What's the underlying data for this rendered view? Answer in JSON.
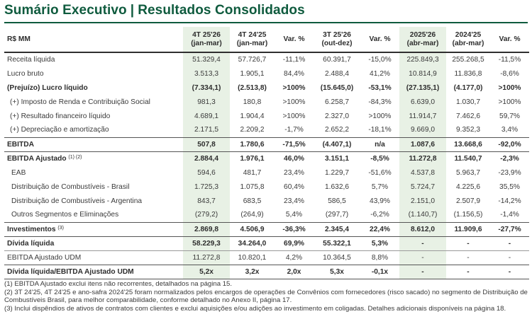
{
  "title": {
    "left": "Sumário Executivo",
    "sep": "|",
    "right": "Resultados Consolidados"
  },
  "table": {
    "unit_label": "R$ MM",
    "columns": [
      {
        "line1": "4T 25'26",
        "line2": "(jan-mar)"
      },
      {
        "line1": "4T 24'25",
        "line2": "(jan-mar)"
      },
      {
        "line1": "Var. %",
        "line2": ""
      },
      {
        "line1": "3T 25'26",
        "line2": "(out-dez)"
      },
      {
        "line1": "Var. %",
        "line2": ""
      },
      {
        "line1": "2025'26",
        "line2": "(abr-mar)"
      },
      {
        "line1": "2024'25",
        "line2": "(abr-mar)"
      },
      {
        "line1": "Var. %",
        "line2": ""
      }
    ],
    "rows": [
      {
        "label": "Receita líquida",
        "values": [
          "51.329,4",
          "57.726,7",
          "-11,1%",
          "60.391,7",
          "-15,0%",
          "225.849,3",
          "255.268,5",
          "-11,5%"
        ]
      },
      {
        "label": "Lucro bruto",
        "values": [
          "3.513,3",
          "1.905,1",
          "84,4%",
          "2.488,4",
          "41,2%",
          "10.814,9",
          "11.836,8",
          "-8,6%"
        ]
      },
      {
        "label": "(Prejuízo) Lucro líquido",
        "values": [
          "(7.334,1)",
          "(2.513,8)",
          ">100%",
          "(15.645,0)",
          "-53,1%",
          "(27.135,1)",
          "(4.177,0)",
          ">100%"
        ]
      },
      {
        "label": "(+) Imposto de Renda e Contribuição Social",
        "values": [
          "981,3",
          "180,8",
          ">100%",
          "6.258,7",
          "-84,3%",
          "6.639,0",
          "1.030,7",
          ">100%"
        ]
      },
      {
        "label": "(+) Resultado financeiro líquido",
        "values": [
          "4.689,1",
          "1.904,4",
          ">100%",
          "2.327,0",
          ">100%",
          "11.914,7",
          "7.462,6",
          "59,7%"
        ]
      },
      {
        "label": "(+) Depreciação e amortização",
        "values": [
          "2.171,5",
          "2.209,2",
          "-1,7%",
          "2.652,2",
          "-18,1%",
          "9.669,0",
          "9.352,3",
          "3,4%"
        ]
      },
      {
        "label": "EBITDA",
        "values": [
          "507,8",
          "1.780,6",
          "-71,5%",
          "(4.407,1)",
          "n/a",
          "1.087,6",
          "13.668,6",
          "-92,0%"
        ]
      },
      {
        "label": "EBITDA Ajustado",
        "footnote": "(1) (2)",
        "values": [
          "2.884,4",
          "1.976,1",
          "46,0%",
          "3.151,1",
          "-8,5%",
          "11.272,8",
          "11.540,7",
          "-2,3%"
        ]
      },
      {
        "label": "EAB",
        "values": [
          "594,6",
          "481,7",
          "23,4%",
          "1.229,7",
          "-51,6%",
          "4.537,8",
          "5.963,7",
          "-23,9%"
        ]
      },
      {
        "label": "Distribuição de Combustíveis - Brasil",
        "values": [
          "1.725,3",
          "1.075,8",
          "60,4%",
          "1.632,6",
          "5,7%",
          "5.724,7",
          "4.225,6",
          "35,5%"
        ]
      },
      {
        "label": "Distribuição de Combustíveis - Argentina",
        "values": [
          "843,7",
          "683,5",
          "23,4%",
          "586,5",
          "43,9%",
          "2.151,0",
          "2.507,9",
          "-14,2%"
        ]
      },
      {
        "label": "Outros Segmentos e Eliminações",
        "values": [
          "(279,2)",
          "(264,9)",
          "5,4%",
          "(297,7)",
          "-6,2%",
          "(1.140,7)",
          "(1.156,5)",
          "-1,4%"
        ]
      },
      {
        "label": "Investimentos",
        "footnote": "(3)",
        "values": [
          "2.869,8",
          "4.506,9",
          "-36,3%",
          "2.345,4",
          "22,4%",
          "8.612,0",
          "11.909,6",
          "-27,7%"
        ]
      },
      {
        "label": "Dívida líquida",
        "values": [
          "58.229,3",
          "34.264,0",
          "69,9%",
          "55.322,1",
          "5,3%",
          "-",
          "-",
          "-"
        ]
      },
      {
        "label": "EBITDA Ajustado UDM",
        "values": [
          "11.272,8",
          "10.820,1",
          "4,2%",
          "10.364,5",
          "8,8%",
          "-",
          "-",
          "-"
        ]
      },
      {
        "label": "Dívida líquida/EBITDA Ajustado UDM",
        "values": [
          "5,2x",
          "3,2x",
          "2,0x",
          "5,3x",
          "-0,1x",
          "-",
          "-",
          "-"
        ]
      }
    ]
  },
  "notes": [
    "(1) EBITDA Ajustado exclui itens não recorrentes, detalhados na página 15.",
    "(2) 3T 24'25, 4T 24'25 e ano-safra 2024'25 foram normalizados pelos encargos de operações de Convênios com fornecedores (risco sacado) no segmento de Distribuição de Combustíveis Brasil, para melhor comparabilidade, conforme detalhado no Anexo II, página 17.",
    "(3) Inclui dispêndios de ativos de contratos com clientes e exclui aquisições e/ou adições ao investimento em coligadas. Detalhes adicionais disponíveis na página 18."
  ]
}
